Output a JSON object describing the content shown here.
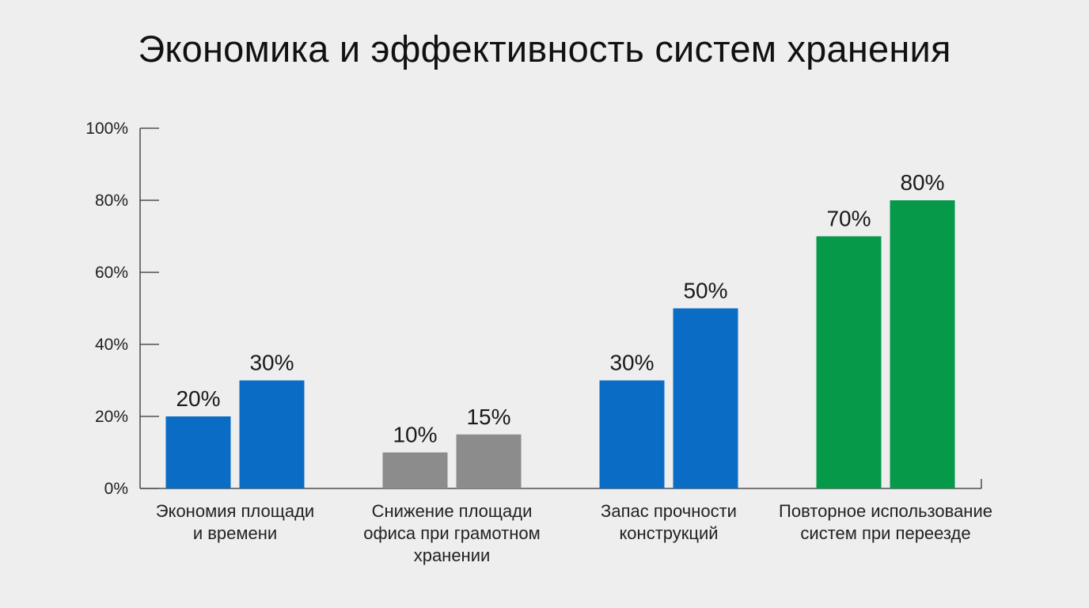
{
  "title": "Экономика и эффективность систем хранения",
  "chart_data": {
    "type": "bar",
    "title": "Экономика и эффективность систем хранения",
    "xlabel": "",
    "ylabel": "",
    "ylim": [
      0,
      100
    ],
    "y_ticks": [
      "0%",
      "20%",
      "40%",
      "60%",
      "80%",
      "100%"
    ],
    "grid": false,
    "legend": "none",
    "categories": [
      {
        "lines": [
          "Экономия площади",
          "и времени"
        ],
        "values": [
          20,
          30
        ],
        "labels": [
          "20%",
          "30%"
        ],
        "color": "#0a6cc4"
      },
      {
        "lines": [
          "Снижение площади",
          "офиса при грамотном",
          "хранении"
        ],
        "values": [
          10,
          15
        ],
        "labels": [
          "10%",
          "15%"
        ],
        "color": "#8c8c8c"
      },
      {
        "lines": [
          "Запас прочности",
          "конструкций"
        ],
        "values": [
          30,
          50
        ],
        "labels": [
          "30%",
          "50%"
        ],
        "color": "#0a6cc4"
      },
      {
        "lines": [
          "Повторное использование",
          "систем при переезде"
        ],
        "values": [
          70,
          80
        ],
        "labels": [
          "70%",
          "80%"
        ],
        "color": "#07994a"
      }
    ]
  }
}
